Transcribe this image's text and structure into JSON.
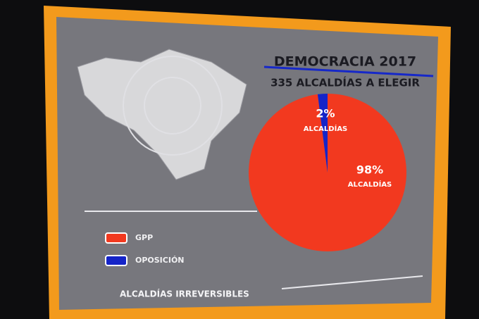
{
  "chart_data": {
    "type": "pie",
    "title": "DEMOCRACIA 2017",
    "subtitle": "335 ALCALDÍAS A ELEGIR",
    "categories": [
      "GPP",
      "OPOSICIÓN"
    ],
    "values": [
      98,
      2
    ],
    "value_labels": [
      "98%",
      "2%"
    ],
    "slice_caption": "ALCALDÍAS",
    "colors": [
      "#f2391f",
      "#1524c8"
    ],
    "legend": "bottom-left",
    "footer": "ALCALDÍAS IRREVERSIBLES"
  }
}
